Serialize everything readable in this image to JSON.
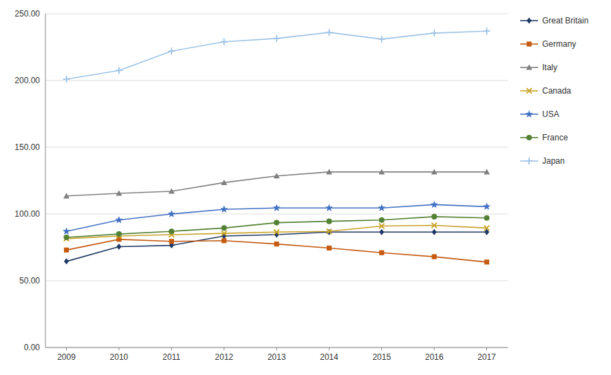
{
  "chart_data": {
    "type": "line",
    "x": [
      2009,
      2010,
      2011,
      2012,
      2013,
      2014,
      2015,
      2016,
      2017
    ],
    "xlim": [
      2008.6,
      2017.4
    ],
    "xticks": [
      2009,
      2010,
      2011,
      2012,
      2013,
      2014,
      2015,
      2016,
      2017
    ],
    "ylim": [
      0,
      250
    ],
    "yticks": [
      {
        "value": 0,
        "label": "0.00"
      },
      {
        "value": 50,
        "label": "50.00"
      },
      {
        "value": 100,
        "label": "100.00"
      },
      {
        "value": 150,
        "label": "150.00"
      },
      {
        "value": 200,
        "label": "200.00"
      },
      {
        "value": 250,
        "label": "250.00"
      }
    ],
    "grid": true,
    "legend": "right",
    "series": [
      {
        "name": "Great Britain",
        "color": "#1f3864",
        "marker": "diamond",
        "values": [
          64.5,
          75.5,
          76.5,
          83.5,
          84.5,
          86.5,
          86.5,
          86.5,
          86.5
        ]
      },
      {
        "name": "Germany",
        "color": "#c55a11",
        "marker": "square",
        "values": [
          73.0,
          81.0,
          79.5,
          80.0,
          77.5,
          74.5,
          71.0,
          68.0,
          64.0
        ]
      },
      {
        "name": "Italy",
        "color": "#808080",
        "marker": "triangle",
        "values": [
          113.5,
          115.5,
          117.0,
          123.5,
          128.5,
          131.5,
          131.5,
          131.5,
          131.5
        ]
      },
      {
        "name": "Canada",
        "color": "#c9a227",
        "marker": "x",
        "values": [
          81.5,
          83.5,
          84.5,
          85.5,
          86.5,
          87.0,
          91.0,
          91.5,
          89.5
        ]
      },
      {
        "name": "USA",
        "color": "#4472c4",
        "marker": "star",
        "values": [
          87.0,
          95.5,
          100.0,
          103.5,
          104.5,
          104.5,
          104.5,
          107.0,
          105.5
        ]
      },
      {
        "name": "France",
        "color": "#548235",
        "marker": "circle",
        "values": [
          82.5,
          85.0,
          87.0,
          89.5,
          93.5,
          94.5,
          95.5,
          98.0,
          97.0
        ]
      },
      {
        "name": "Japan",
        "color": "#9dc3e6",
        "marker": "plus",
        "values": [
          201.0,
          207.5,
          222.0,
          229.0,
          231.5,
          236.0,
          231.0,
          235.5,
          237.0
        ]
      }
    ]
  }
}
